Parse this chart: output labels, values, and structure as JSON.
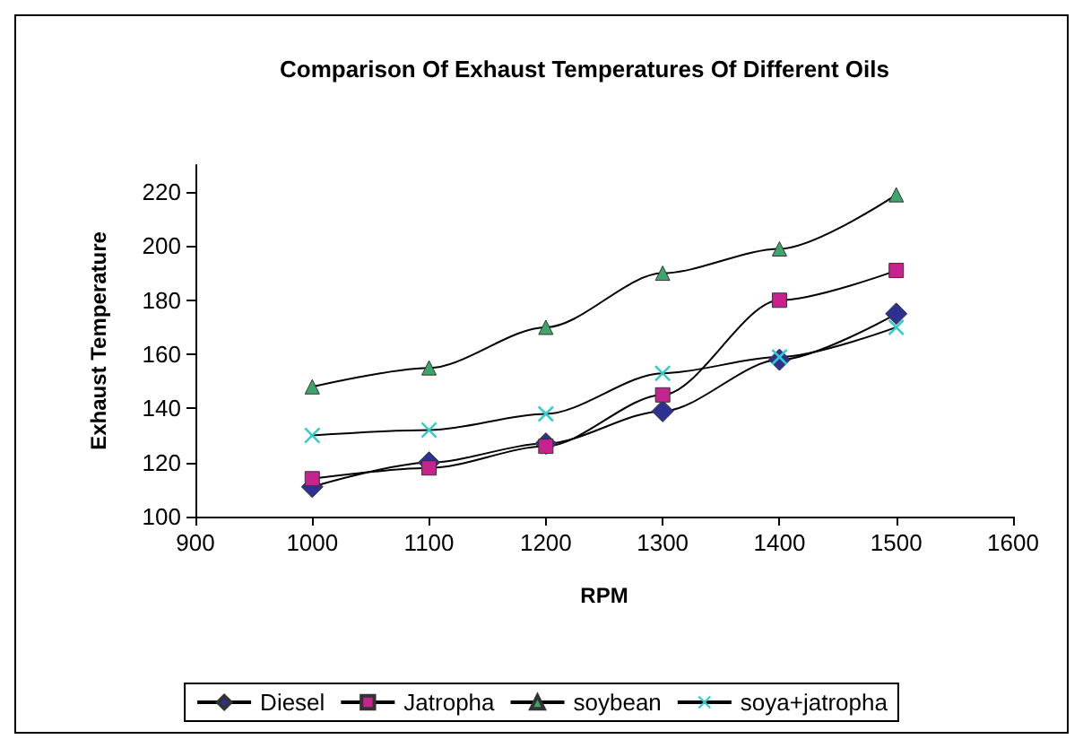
{
  "chart_data": {
    "type": "line",
    "title": "Comparison Of Exhaust Temperatures Of Different Oils",
    "xlabel": "RPM",
    "ylabel": "Exhaust Temperature",
    "x": [
      1000,
      1100,
      1200,
      1300,
      1400,
      1500
    ],
    "series": [
      {
        "name": "Diesel",
        "color": "#2e3192",
        "marker": "diamond",
        "values": [
          111,
          120,
          127,
          139,
          158,
          175
        ]
      },
      {
        "name": "Jatropha",
        "color": "#c7238f",
        "marker": "square",
        "values": [
          114,
          118,
          126,
          145,
          180,
          191
        ]
      },
      {
        "name": "soybean",
        "color": "#3fa66b",
        "marker": "triangle",
        "values": [
          148,
          155,
          170,
          190,
          199,
          219
        ]
      },
      {
        "name": "soya+jatropha",
        "color": "#33cccc",
        "marker": "cross",
        "values": [
          130,
          132,
          138,
          153,
          159,
          170
        ]
      }
    ],
    "xlim": [
      900,
      1600
    ],
    "xticks": [
      900,
      1000,
      1100,
      1200,
      1300,
      1400,
      1500,
      1600
    ],
    "ylim": [
      100,
      230
    ],
    "yticks": [
      100,
      120,
      140,
      160,
      180,
      200,
      220
    ],
    "grid": false,
    "legend": "bottom",
    "line_style": "solid"
  }
}
